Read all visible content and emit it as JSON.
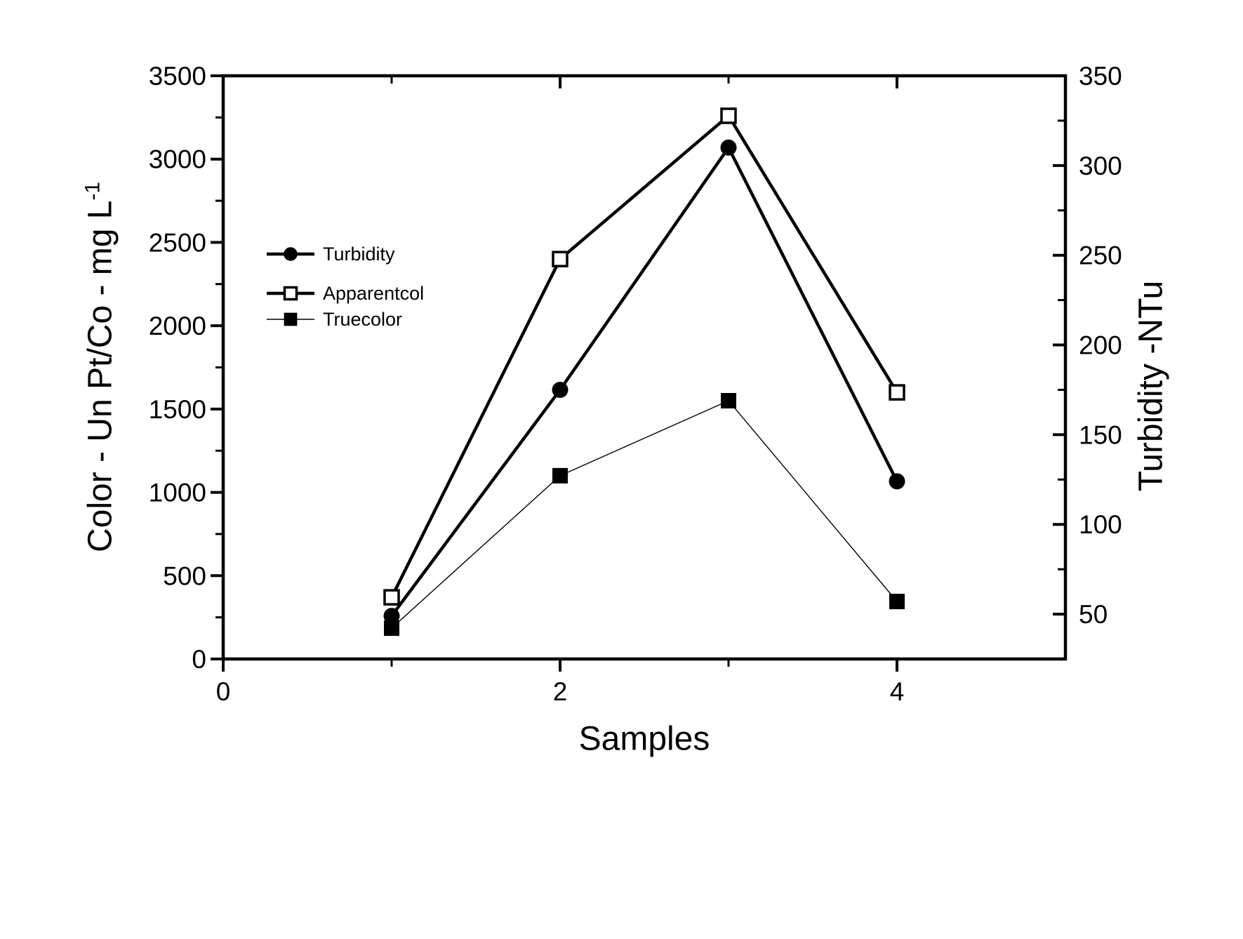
{
  "chart_data": {
    "type": "line",
    "title": "",
    "xlabel": "Samples",
    "ylabel_left": {
      "main": "Color - Un Pt/Co - mg L",
      "sup": "-1"
    },
    "ylabel_right": "Turbidity -NTu",
    "x_samples": [
      1,
      2,
      3,
      4
    ],
    "series": [
      {
        "name": "Turbidity",
        "axis": "right",
        "marker": "filled-circle",
        "line": "thick",
        "values": [
          49,
          175,
          310,
          124
        ]
      },
      {
        "name": "Apparentcol",
        "axis": "left",
        "marker": "open-square",
        "line": "thick",
        "values": [
          370,
          2400,
          3260,
          1600
        ]
      },
      {
        "name": "Truecolor",
        "axis": "left",
        "marker": "filled-square",
        "line": "thin",
        "values": [
          185,
          1100,
          1550,
          345
        ]
      }
    ],
    "axes": {
      "x": {
        "min": 0,
        "max": 5,
        "major_ticks": [
          0,
          2,
          4
        ],
        "minor_ticks": [
          1,
          3
        ],
        "tick_labels": [
          "0",
          "2",
          "4"
        ]
      },
      "left": {
        "min": 0,
        "max": 3500,
        "major_ticks": [
          0,
          500,
          1000,
          1500,
          2000,
          2500,
          3000,
          3500
        ],
        "minor_step": 250,
        "tick_labels": [
          "0",
          "500",
          "1000",
          "1500",
          "2000",
          "2500",
          "3000",
          "3500"
        ]
      },
      "right": {
        "min": 25,
        "max": 350,
        "major_ticks": [
          50,
          100,
          150,
          200,
          250,
          300,
          350
        ],
        "minor_step": 25,
        "tick_labels": [
          "50",
          "100",
          "150",
          "200",
          "250",
          "300",
          "350"
        ]
      }
    },
    "legend": {
      "entries": [
        "Turbidity",
        "Apparentcol",
        "Truecolor"
      ],
      "position": "inside-upper-left"
    },
    "grid": false,
    "colors": {
      "stroke": "#000000",
      "background": "#ffffff"
    }
  }
}
